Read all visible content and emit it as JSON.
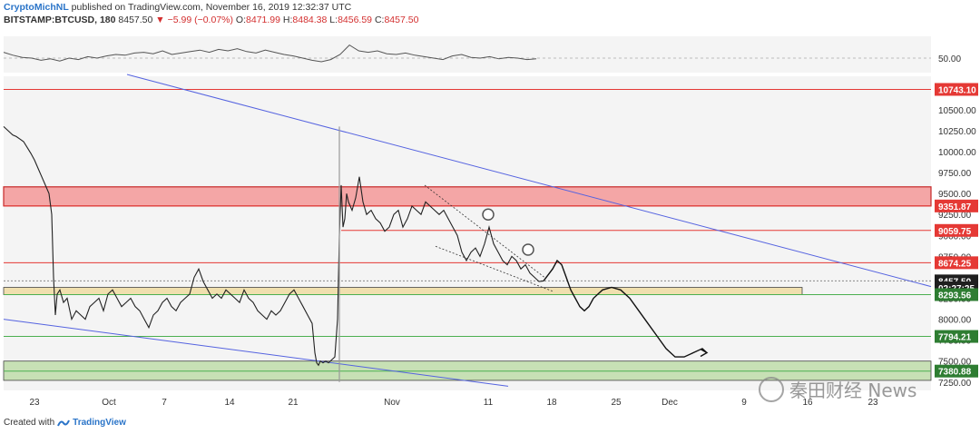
{
  "header": {
    "author": "CryptoMichNL",
    "published": "published on TradingView.com, November 16, 2019 12:32:37 UTC",
    "symbol": "BITSTAMP:BTCUSD, 180",
    "last": "8457.50",
    "change": "▼ −5.99 (−0.07%)",
    "ohlc": {
      "o_label": "O:",
      "o": "8471.99",
      "h_label": "H:",
      "h": "8484.38",
      "l_label": "L:",
      "l": "8456.59",
      "c_label": "C:",
      "c": "8457.50"
    }
  },
  "footer": {
    "created_with": "Created with",
    "brand": "TradingView"
  },
  "watermark": "秦田财经 News",
  "colors": {
    "resistance_zone": "#f4a6a6",
    "support_zone_gold": "#f0dfae",
    "support_zone_green": "#c7e0b5",
    "trendline": "#5563e0",
    "red_level": "#e53935",
    "green_level": "#4caf50",
    "price_tag_red": "#e53935",
    "price_tag_dark": "#1f1f1f",
    "price_tag_green": "#2e7d32"
  },
  "chart_data": {
    "type": "line",
    "symbol": "BITSTAMP:BTCUSD",
    "timeframe": "180",
    "x_tick_labels": [
      "23",
      "Oct",
      "7",
      "14",
      "21",
      "Nov",
      "11",
      "18",
      "25",
      "Dec",
      "9",
      "16",
      "23"
    ],
    "y_tick_labels": [
      "7250.00",
      "7500.00",
      "7750.00",
      "8000.00",
      "8250.00",
      "8500.00",
      "8750.00",
      "9000.00",
      "9250.00",
      "9500.00",
      "9750.00",
      "10000.00",
      "10250.00",
      "10500.00"
    ],
    "ylim": [
      7150,
      10900
    ],
    "price_labels": [
      {
        "label": "10743.10",
        "value": 10743.1,
        "style": "red"
      },
      {
        "label": "9351.87",
        "value": 9351.87,
        "style": "red"
      },
      {
        "label": "9059.75",
        "value": 9059.75,
        "style": "red"
      },
      {
        "label": "8674.25",
        "value": 8674.25,
        "style": "red"
      },
      {
        "label": "8457.50",
        "value": 8457.5,
        "style": "dark"
      },
      {
        "label": "02:27:25",
        "value": 8375,
        "style": "dark"
      },
      {
        "label": "8293.56",
        "value": 8293.56,
        "style": "green"
      },
      {
        "label": "7794.21",
        "value": 7794.21,
        "style": "green"
      },
      {
        "label": "7380.88",
        "value": 7380.88,
        "style": "green"
      }
    ],
    "zones": [
      {
        "name": "resistance",
        "from": 9351.87,
        "to": 9580,
        "color": "#f4a6a6"
      },
      {
        "name": "support",
        "from": 8293.56,
        "to": 8380,
        "color": "#f0dfae"
      },
      {
        "name": "support",
        "from": 7270,
        "to": 7500,
        "color": "#c7e0b5"
      }
    ],
    "price_series": {
      "x": [
        0,
        5,
        10,
        14,
        18,
        22,
        26,
        30,
        34,
        38,
        42,
        46,
        50,
        53,
        55,
        57,
        59,
        62,
        66,
        70,
        75,
        80,
        85,
        90,
        95,
        100,
        105,
        110,
        115,
        120,
        125,
        130,
        135,
        140,
        145,
        150,
        155,
        160,
        165,
        170,
        175,
        180,
        185,
        190,
        195,
        200,
        205,
        210,
        215,
        220,
        225,
        230,
        235,
        240,
        245,
        250,
        255,
        260,
        265,
        270,
        275,
        280,
        285,
        290,
        295,
        300,
        305,
        310,
        315,
        320,
        325,
        330,
        335,
        340,
        343,
        345,
        347,
        349,
        352,
        355,
        358,
        362,
        365,
        368,
        370,
        372,
        374,
        376,
        378,
        380,
        384,
        388,
        392,
        396,
        400,
        405,
        410,
        415,
        420,
        425,
        430,
        435,
        440,
        445,
        450,
        455,
        460,
        465,
        470,
        475,
        480,
        485,
        490,
        495,
        500,
        505,
        510,
        515,
        520,
        525,
        530,
        535,
        540,
        545,
        550,
        555,
        560,
        565,
        570,
        575,
        580,
        585,
        590,
        595
      ],
      "values": [
        10300,
        10250,
        10200,
        10180,
        10150,
        10120,
        10050,
        9980,
        9900,
        9800,
        9700,
        9600,
        9500,
        9250,
        8500,
        8050,
        8300,
        8350,
        8200,
        8250,
        8000,
        8100,
        8050,
        8000,
        8150,
        8200,
        8250,
        8100,
        8300,
        8350,
        8250,
        8150,
        8200,
        8250,
        8150,
        8100,
        8000,
        7900,
        8050,
        8100,
        8200,
        8250,
        8150,
        8100,
        8200,
        8250,
        8300,
        8500,
        8600,
        8450,
        8350,
        8250,
        8300,
        8250,
        8350,
        8300,
        8250,
        8200,
        8350,
        8250,
        8200,
        8100,
        8050,
        8000,
        8100,
        8050,
        8100,
        8200,
        8300,
        8350,
        8250,
        8150,
        8050,
        7950,
        7600,
        7480,
        7450,
        7500,
        7480,
        7500,
        7480,
        7520,
        7550,
        8000,
        9000,
        9600,
        9100,
        9200,
        9500,
        9400,
        9300,
        9450,
        9700,
        9400,
        9250,
        9300,
        9200,
        9150,
        9050,
        9100,
        9250,
        9300,
        9100,
        9200,
        9350,
        9300,
        9250,
        9400,
        9350,
        9300,
        9250,
        9300,
        9200,
        9100,
        9000,
        8800,
        8700,
        8800,
        8850,
        8750,
        8900,
        9100,
        8900,
        8800,
        8700,
        8650,
        8750,
        8700,
        8600,
        8650,
        8550,
        8500,
        8450,
        8457.5
      ]
    },
    "projection_path": {
      "x": [
        595,
        605,
        610,
        615,
        620,
        625,
        630,
        635,
        640,
        645,
        650,
        655,
        660,
        670,
        680,
        690,
        700,
        710,
        720,
        730,
        740,
        750,
        760,
        770,
        775
      ],
      "values": [
        8457.5,
        8600,
        8700,
        8650,
        8500,
        8350,
        8250,
        8150,
        8100,
        8150,
        8250,
        8300,
        8350,
        8380,
        8350,
        8250,
        8100,
        7950,
        7800,
        7650,
        7550,
        7550,
        7600,
        7650,
        7600
      ]
    },
    "oscillator": {
      "label": "50.00",
      "values": [
        58,
        54,
        51,
        50,
        47,
        49,
        46,
        50,
        48,
        52,
        50,
        53,
        55,
        54,
        57,
        58,
        56,
        60,
        55,
        57,
        59,
        61,
        58,
        62,
        60,
        63,
        59,
        57,
        61,
        58,
        55,
        53,
        50,
        47,
        45,
        48,
        55,
        68,
        60,
        58,
        60,
        56,
        55,
        57,
        54,
        52,
        50,
        48,
        53,
        55,
        51,
        50,
        52,
        49,
        51,
        50,
        48,
        49
      ]
    }
  }
}
